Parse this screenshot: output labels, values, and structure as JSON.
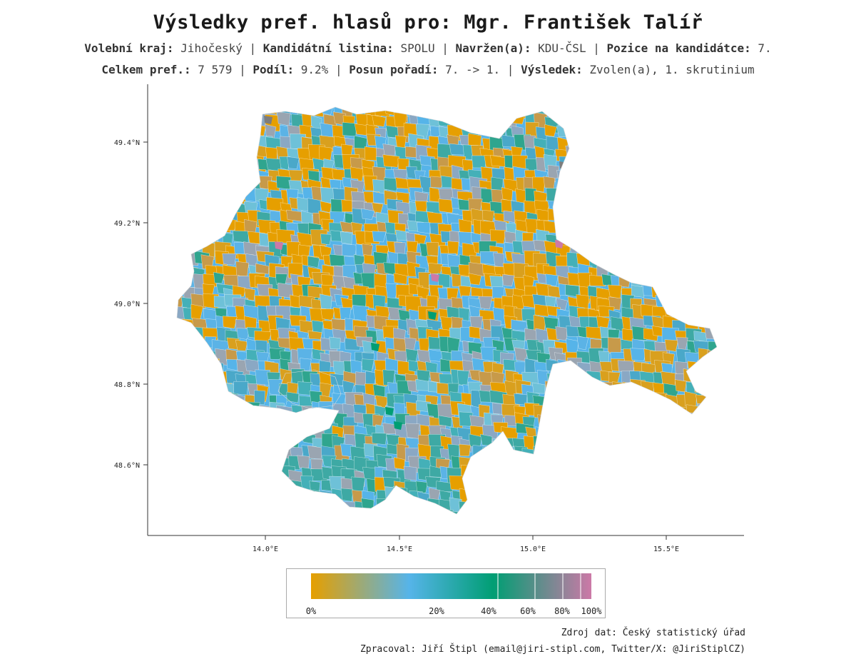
{
  "title": "Výsledky pref. hlasů pro:  Mgr. František Talíř",
  "info_line1": [
    {
      "label": "Volební kraj:",
      "value": "Jihočeský"
    },
    {
      "label": "Kandidátní listina:",
      "value": "SPOLU"
    },
    {
      "label": "Navržen(a):",
      "value": "KDU-ČSL"
    },
    {
      "label": "Pozice na kandidátce:",
      "value": "7."
    }
  ],
  "info_line2": [
    {
      "label": "Celkem pref.:",
      "value": "7 579"
    },
    {
      "label": "Podíl:",
      "value": "9.2%"
    },
    {
      "label": "Posun pořadí:",
      "value": "7. -> 1."
    },
    {
      "label": "Výsledek:",
      "value": "Zvolen(a), 1. skrutinium"
    }
  ],
  "map": {
    "y_ticks": [
      "49.4°N",
      "49.2°N",
      "49.0°N",
      "48.8°N",
      "48.6°N"
    ],
    "x_ticks": [
      "14.0°E",
      "14.5°E",
      "15.0°E",
      "15.5°E"
    ],
    "region_colors": [
      "#e69f00",
      "#5bb3e6",
      "#56b4e9",
      "#4aa8c9",
      "#3ea9a4",
      "#2fa58e",
      "#9aa5b1",
      "#8aa8c4",
      "#c79a4a",
      "#6ec1d8",
      "#d9a01e",
      "#44b0b8"
    ],
    "accent_colors": {
      "dark_green": "#009e73",
      "pink": "#cc79a7",
      "grey": "#7d7d7d"
    }
  },
  "legend": {
    "stops": [
      "#e69f00",
      "#56b4e9",
      "#009e73",
      "#cc79a7"
    ],
    "ticks": [
      {
        "label": "0%",
        "value": 0
      },
      {
        "label": "20%",
        "value": 20
      },
      {
        "label": "40%",
        "value": 40
      },
      {
        "label": "60%",
        "value": 60
      },
      {
        "label": "80%",
        "value": 80
      },
      {
        "label": "100%",
        "value": 100
      }
    ]
  },
  "credits": {
    "source": "Zdroj dat: Český statistický úřad",
    "author": "Zpracoval: Jiří Štipl (email@jiri-stipl.com, Twitter/X: @JiriStiplCZ)"
  }
}
